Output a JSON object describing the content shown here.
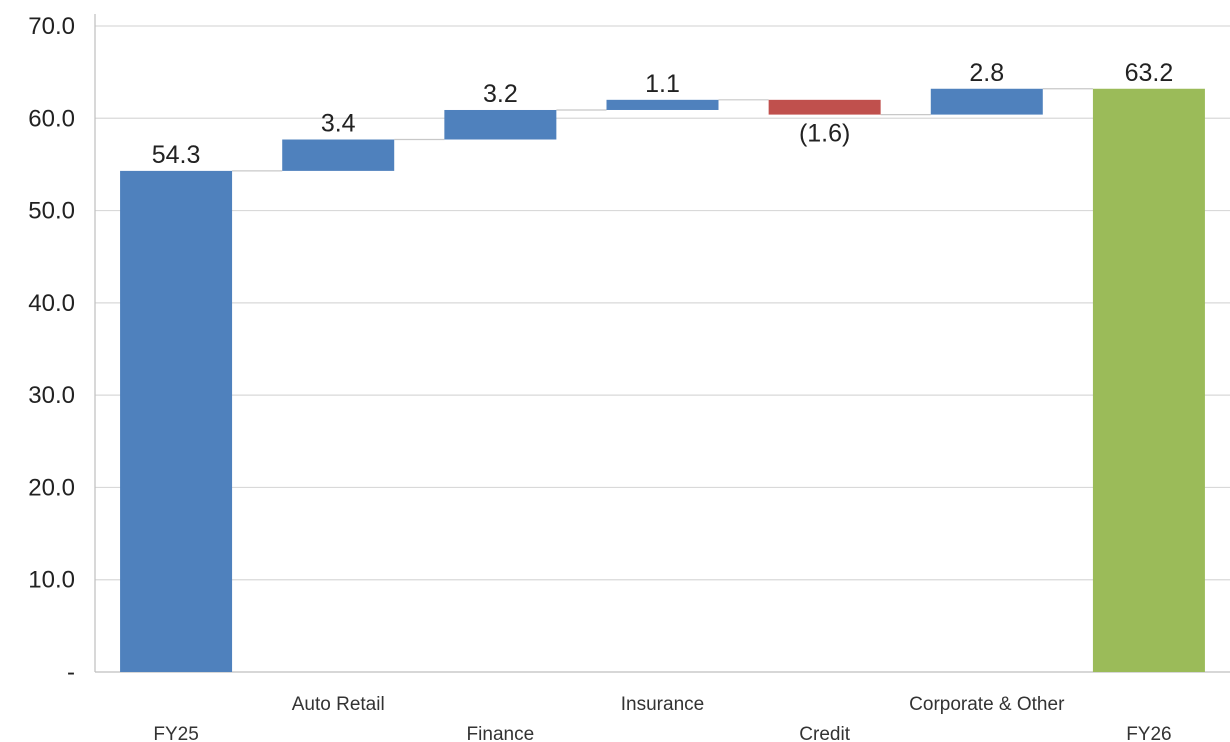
{
  "chart_data": {
    "type": "bar",
    "subtype": "waterfall",
    "title": "",
    "xlabel": "",
    "ylabel": "",
    "ylim": [
      0,
      70
    ],
    "yticks": [
      0,
      10,
      20,
      30,
      40,
      50,
      60,
      70
    ],
    "ytick_labels": [
      "-",
      "10.0",
      "20.0",
      "30.0",
      "40.0",
      "50.0",
      "60.0",
      "70.0"
    ],
    "grid": true,
    "legend": "none",
    "categories": [
      "FY25",
      "Auto Retail",
      "Finance",
      "Insurance",
      "Credit",
      "Corporate & Other",
      "FY26"
    ],
    "bars": [
      {
        "category": "FY25",
        "kind": "total",
        "start": 0,
        "end": 54.3,
        "value": 54.3,
        "label": "54.3",
        "color": "#4F81BD"
      },
      {
        "category": "Auto Retail",
        "kind": "increase",
        "start": 54.3,
        "end": 57.7,
        "value": 3.4,
        "label": "3.4",
        "color": "#4F81BD"
      },
      {
        "category": "Finance",
        "kind": "increase",
        "start": 57.7,
        "end": 60.9,
        "value": 3.2,
        "label": "3.2",
        "color": "#4F81BD"
      },
      {
        "category": "Insurance",
        "kind": "increase",
        "start": 60.9,
        "end": 62.0,
        "value": 1.1,
        "label": "1.1",
        "color": "#4F81BD"
      },
      {
        "category": "Credit",
        "kind": "decrease",
        "start": 62.0,
        "end": 60.4,
        "value": -1.6,
        "label": "(1.6)",
        "color": "#C0504D"
      },
      {
        "category": "Corporate & Other",
        "kind": "increase",
        "start": 60.4,
        "end": 63.2,
        "value": 2.8,
        "label": "2.8",
        "color": "#4F81BD"
      },
      {
        "category": "FY26",
        "kind": "total",
        "start": 0,
        "end": 63.2,
        "value": 63.2,
        "label": "63.2",
        "color": "#9BBB59"
      }
    ],
    "colors": {
      "increase": "#4F81BD",
      "decrease": "#C0504D",
      "total_end": "#9BBB59",
      "grid": "#D9D9D9",
      "axis": "#BFBFBF"
    }
  }
}
